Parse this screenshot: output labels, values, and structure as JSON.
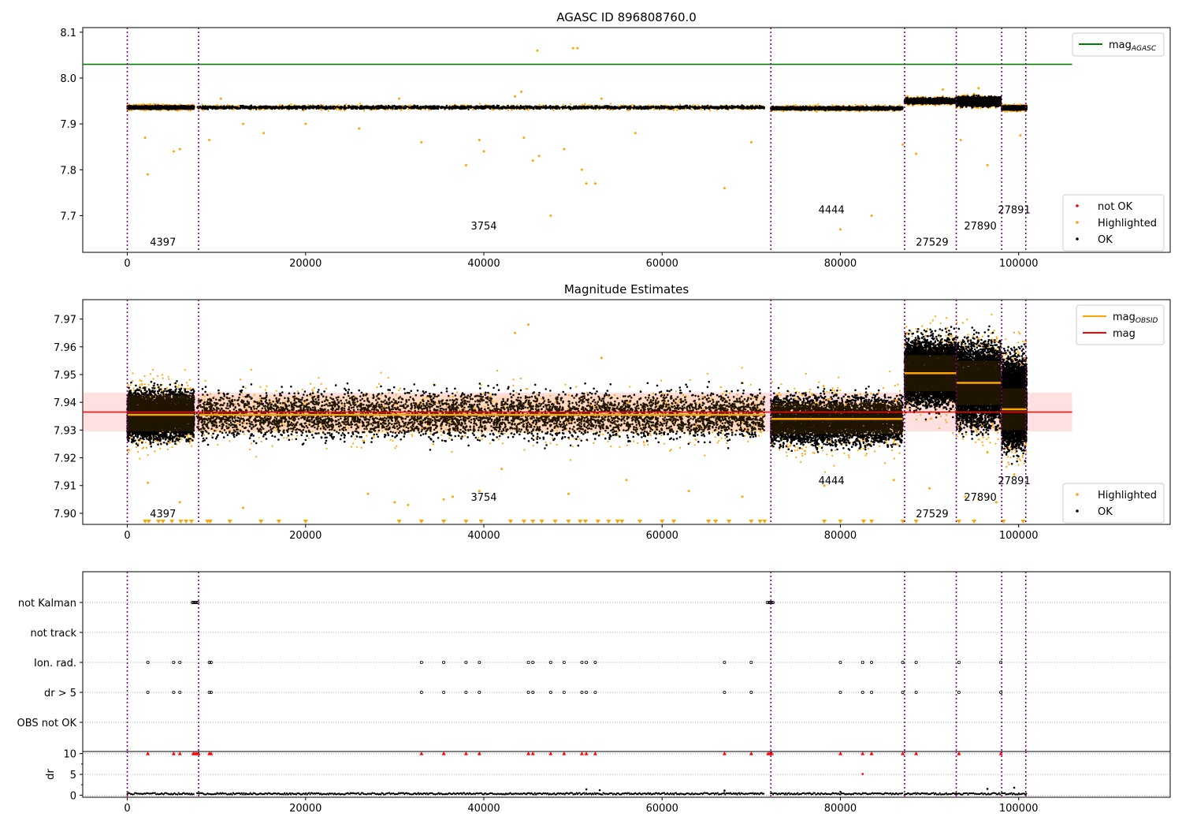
{
  "chart_data": [
    {
      "type": "scatter",
      "title": "AGASC ID 896808760.0",
      "xlim": [
        -5000,
        117000
      ],
      "ylim": [
        7.62,
        8.11
      ],
      "xticks": [
        0,
        20000,
        40000,
        60000,
        80000,
        100000
      ],
      "yticks": [
        7.7,
        7.8,
        7.9,
        8.0,
        8.1
      ],
      "legend_upper": {
        "placement": "top-right",
        "entries": [
          {
            "label": "mag",
            "sub": "AGASC",
            "color": "#008000"
          }
        ]
      },
      "legend_lower": {
        "placement": "bottom-right",
        "entries": [
          {
            "label": "not OK",
            "color": "#ff0000"
          },
          {
            "label": "Highlighted",
            "color": "#ffa500"
          },
          {
            "label": "OK",
            "color": "#000000"
          }
        ]
      },
      "agasc_mag": 8.03,
      "obsid_boundaries": [
        0,
        8000,
        72200,
        87200,
        93000,
        98100,
        100800
      ],
      "obsid_labels": [
        {
          "text": "4397",
          "x": 4000,
          "y": 7.635
        },
        {
          "text": "3754",
          "x": 40000,
          "y": 7.67
        },
        {
          "text": "4444",
          "x": 79000,
          "y": 7.705
        },
        {
          "text": "27529",
          "x": 90300,
          "y": 7.635
        },
        {
          "text": "27890",
          "x": 95700,
          "y": 7.67
        },
        {
          "text": "27891",
          "x": 99500,
          "y": 7.705
        }
      ],
      "ok_band": [
        {
          "x0": 0,
          "x1": 7500,
          "y0": 7.927,
          "y1": 7.945
        },
        {
          "x0": 7800,
          "x1": 71500,
          "y0": 7.927,
          "y1": 7.945
        },
        {
          "x0": 72200,
          "x1": 87000,
          "y0": 7.925,
          "y1": 7.943
        },
        {
          "x0": 87200,
          "x1": 93000,
          "y0": 7.938,
          "y1": 7.962
        },
        {
          "x0": 93000,
          "x1": 98000,
          "y0": 7.93,
          "y1": 7.968
        },
        {
          "x0": 98100,
          "x1": 100900,
          "y0": 7.925,
          "y1": 7.945
        }
      ],
      "highlighted_points": [
        [
          2000,
          7.87
        ],
        [
          2300,
          7.79
        ],
        [
          5200,
          7.84
        ],
        [
          5900,
          7.845
        ],
        [
          9200,
          7.865
        ],
        [
          13000,
          7.9
        ],
        [
          15300,
          7.88
        ],
        [
          20000,
          7.9
        ],
        [
          26000,
          7.89
        ],
        [
          33000,
          7.86
        ],
        [
          38000,
          7.81
        ],
        [
          39500,
          7.865
        ],
        [
          40000,
          7.84
        ],
        [
          43500,
          7.96
        ],
        [
          44500,
          7.87
        ],
        [
          45500,
          7.82
        ],
        [
          46000,
          8.06
        ],
        [
          46200,
          7.83
        ],
        [
          47500,
          7.7
        ],
        [
          49000,
          7.845
        ],
        [
          50000,
          8.065
        ],
        [
          50500,
          8.065
        ],
        [
          51000,
          7.8
        ],
        [
          51500,
          7.77
        ],
        [
          52500,
          7.77
        ],
        [
          57000,
          7.88
        ],
        [
          67000,
          7.76
        ],
        [
          70000,
          7.86
        ],
        [
          80000,
          7.67
        ],
        [
          83500,
          7.7
        ],
        [
          87000,
          7.855
        ],
        [
          88500,
          7.835
        ],
        [
          93000,
          7.935
        ],
        [
          93500,
          7.865
        ],
        [
          96500,
          7.81
        ],
        [
          100200,
          7.875
        ],
        [
          10500,
          7.955
        ],
        [
          30500,
          7.955
        ],
        [
          44200,
          7.97
        ],
        [
          53200,
          7.955
        ],
        [
          91500,
          7.975
        ],
        [
          95500,
          7.978
        ]
      ]
    },
    {
      "type": "scatter",
      "title": "Magnitude Estimates",
      "xlim": [
        -5000,
        117000
      ],
      "ylim": [
        7.896,
        7.977
      ],
      "xticks": [
        0,
        20000,
        40000,
        60000,
        80000,
        100000
      ],
      "yticks": [
        7.9,
        7.91,
        7.92,
        7.93,
        7.94,
        7.95,
        7.96,
        7.97
      ],
      "legend_upper": {
        "placement": "top-right",
        "entries": [
          {
            "label": "mag",
            "sub": "OBSID",
            "color": "#ffa500"
          },
          {
            "label": "mag",
            "color": "#ff0000"
          }
        ]
      },
      "legend_lower": {
        "placement": "bottom-right",
        "entries": [
          {
            "label": "Highlighted",
            "color": "#ffa500"
          },
          {
            "label": "OK",
            "color": "#000000"
          }
        ]
      },
      "mag": 7.9365,
      "mag_band": [
        7.9295,
        7.9435
      ],
      "obsid_boundaries": [
        0,
        8000,
        72200,
        87200,
        93000,
        98100,
        100800
      ],
      "obsid_mags": [
        {
          "x0": 0,
          "x1": 7500,
          "mag": 7.9355,
          "lo": 7.9295,
          "hi": 7.9425
        },
        {
          "x0": 7800,
          "x1": 71500,
          "mag": 7.9355,
          "lo": 7.929,
          "hi": 7.9425
        },
        {
          "x0": 72200,
          "x1": 87000,
          "mag": 7.934,
          "lo": 7.9285,
          "hi": 7.94
        },
        {
          "x0": 87200,
          "x1": 93000,
          "mag": 7.9505,
          "lo": 7.944,
          "hi": 7.957
        },
        {
          "x0": 93000,
          "x1": 98000,
          "mag": 7.947,
          "lo": 7.939,
          "hi": 7.955
        },
        {
          "x0": 98100,
          "x1": 100900,
          "mag": 7.9375,
          "lo": 7.93,
          "hi": 7.945
        }
      ],
      "ok_clouds": [
        {
          "x0": 0,
          "x1": 7500,
          "y0": 7.923,
          "y1": 7.948
        },
        {
          "x0": 7800,
          "x1": 71500,
          "y0": 7.923,
          "y1": 7.948
        },
        {
          "x0": 72200,
          "x1": 87000,
          "y0": 7.921,
          "y1": 7.946
        },
        {
          "x0": 87200,
          "x1": 93000,
          "y0": 7.934,
          "y1": 7.968
        },
        {
          "x0": 93000,
          "x1": 98000,
          "y0": 7.925,
          "y1": 7.968
        },
        {
          "x0": 98100,
          "x1": 100900,
          "y0": 7.918,
          "y1": 7.962
        }
      ],
      "obsid_labels": [
        {
          "text": "4397",
          "x": 4000,
          "y": 7.8985
        },
        {
          "text": "3754",
          "x": 40000,
          "y": 7.9045
        },
        {
          "text": "4444",
          "x": 79000,
          "y": 7.9105
        },
        {
          "text": "27529",
          "x": 90300,
          "y": 7.8985
        },
        {
          "text": "27890",
          "x": 95700,
          "y": 7.9045
        },
        {
          "text": "27891",
          "x": 99500,
          "y": 7.9105
        }
      ],
      "highlighted_points": [
        [
          2300,
          7.911
        ],
        [
          5900,
          7.904
        ],
        [
          13000,
          7.902
        ],
        [
          27000,
          7.907
        ],
        [
          30000,
          7.904
        ],
        [
          31500,
          7.903
        ],
        [
          35500,
          7.905
        ],
        [
          36500,
          7.906
        ],
        [
          39500,
          7.908
        ],
        [
          42000,
          7.916
        ],
        [
          43500,
          7.965
        ],
        [
          45000,
          7.968
        ],
        [
          49500,
          7.907
        ],
        [
          53200,
          7.956
        ],
        [
          56000,
          7.912
        ],
        [
          63000,
          7.908
        ],
        [
          69000,
          7.906
        ],
        [
          78200,
          7.91
        ],
        [
          86000,
          7.912
        ],
        [
          90000,
          7.909
        ],
        [
          94000,
          7.906
        ],
        [
          95500,
          7.905
        ],
        [
          96500,
          7.922
        ],
        [
          97500,
          7.904
        ],
        [
          99500,
          7.914
        ],
        [
          100800,
          7.962
        ]
      ],
      "below_range_markers": [
        2000,
        2400,
        3500,
        4000,
        5000,
        6000,
        6600,
        7200,
        9000,
        9300,
        11500,
        15000,
        17000,
        20000,
        30500,
        33000,
        35500,
        38000,
        39700,
        43000,
        44500,
        45500,
        46500,
        48000,
        49500,
        50800,
        51400,
        52800,
        54000,
        55000,
        55500,
        57500,
        60000,
        61300,
        65200,
        66000,
        67500,
        70000,
        71000,
        71500,
        78200,
        80000,
        82600,
        83500,
        87000,
        88500,
        93300,
        95000,
        98300,
        100500
      ]
    },
    {
      "type": "scatter",
      "title": "",
      "xlim": [
        -5000,
        117000
      ],
      "xticks": [
        0,
        20000,
        40000,
        60000,
        80000,
        100000
      ],
      "flag_rows": [
        "not Kalman",
        "not track",
        "Ion. rad.",
        "dr > 5",
        "OBS not OK"
      ],
      "obsid_boundaries": [
        0,
        8000,
        72200,
        87200,
        93000,
        98100,
        100800
      ],
      "flag_points": {
        "not Kalman": [
          7300,
          7450,
          7600,
          7750,
          7900,
          71800,
          72000,
          72150,
          72300,
          72450
        ],
        "not track": [],
        "Ion. rad.": [
          2300,
          5200,
          5900,
          9200,
          9400,
          33000,
          35500,
          38000,
          39500,
          45000,
          45500,
          47500,
          49000,
          51000,
          51500,
          52500,
          67000,
          70000,
          80000,
          82500,
          83500,
          87000,
          88500,
          93300,
          98000
        ],
        "dr > 5": [
          2300,
          5200,
          5900,
          9200,
          9400,
          33000,
          35500,
          38000,
          39500,
          45000,
          45500,
          47500,
          49000,
          51000,
          51500,
          52500,
          67000,
          70000,
          80000,
          82500,
          83500,
          87000,
          88500,
          93300,
          98000
        ],
        "OBS not OK": []
      },
      "dr_panel": {
        "ylabel": "dr",
        "ylim": [
          -0.5,
          10.5
        ],
        "yticks": [
          0,
          5,
          10
        ],
        "clipped_points": [
          2300,
          5200,
          5900,
          7400,
          7600,
          7800,
          8000,
          9200,
          9400,
          33000,
          35500,
          38000,
          39500,
          45000,
          45500,
          47500,
          49000,
          51000,
          51500,
          52500,
          67000,
          70000,
          71900,
          72100,
          72300,
          80000,
          82500,
          83500,
          87000,
          88500,
          93300,
          98000
        ],
        "mid_points": [
          [
            82500,
            5.1
          ]
        ],
        "baseline_segments": [
          [
            0,
            7500
          ],
          [
            7800,
            71500
          ],
          [
            72200,
            87000
          ],
          [
            87200,
            93000
          ],
          [
            93000,
            98000
          ],
          [
            98100,
            100900
          ]
        ],
        "small_points": [
          [
            51500,
            1.4
          ],
          [
            53000,
            1.2
          ],
          [
            67000,
            1.1
          ],
          [
            80000,
            0.8
          ],
          [
            96500,
            1.5
          ],
          [
            99500,
            1.8
          ]
        ]
      }
    }
  ]
}
